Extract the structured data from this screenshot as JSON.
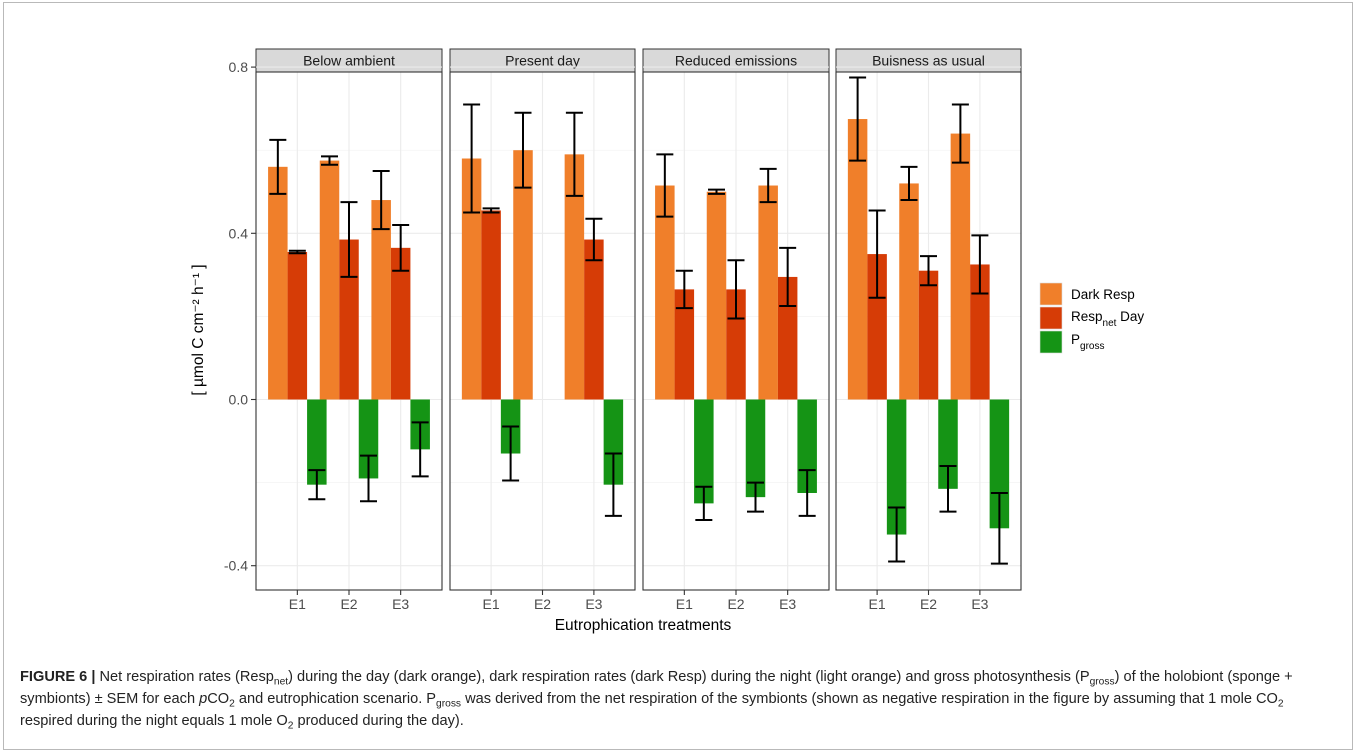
{
  "chart_data": {
    "type": "bar",
    "facets": [
      "Below ambient",
      "Present day",
      "Reduced emissions",
      "Buisness as usual"
    ],
    "categories": [
      "E1",
      "E2",
      "E3"
    ],
    "xlabel": "Eutrophication treatments",
    "ylabel": "[ µmol C cm⁻² h⁻¹ ]",
    "ylim": [
      -0.45,
      0.85
    ],
    "yticks": [
      -0.4,
      0.0,
      0.4,
      0.8
    ],
    "ytick_labels": [
      "-0.4",
      "0.0",
      "0.4",
      "0.8"
    ],
    "grid": true,
    "legend_position": "right",
    "colors": {
      "dark_resp": "#f07f2a",
      "resp_net_day": "#d63c06",
      "p_gross": "#159415"
    },
    "series": [
      {
        "name": "Dark Resp",
        "key": "dark_resp",
        "values": [
          [
            0.56,
            0.575,
            0.48
          ],
          [
            0.58,
            0.6,
            0.59
          ],
          [
            0.515,
            0.5,
            0.515
          ],
          [
            0.675,
            0.52,
            0.64
          ]
        ],
        "errors": [
          [
            0.065,
            0.01,
            0.07
          ],
          [
            0.13,
            0.09,
            0.1
          ],
          [
            0.075,
            0.005,
            0.04
          ],
          [
            0.1,
            0.04,
            0.07
          ]
        ]
      },
      {
        "name": "Resp_net Day",
        "key": "resp_net_day",
        "values": [
          [
            0.355,
            0.385,
            0.365
          ],
          [
            0.455,
            null,
            0.385
          ],
          [
            0.265,
            0.265,
            0.295
          ],
          [
            0.35,
            0.31,
            0.325
          ]
        ],
        "errors": [
          [
            0.003,
            0.09,
            0.055
          ],
          [
            0.005,
            null,
            0.05
          ],
          [
            0.045,
            0.07,
            0.07
          ],
          [
            0.105,
            0.035,
            0.07
          ]
        ]
      },
      {
        "name": "P_gross",
        "key": "p_gross",
        "values": [
          [
            -0.205,
            -0.19,
            -0.12
          ],
          [
            -0.13,
            null,
            -0.205
          ],
          [
            -0.25,
            -0.235,
            -0.225
          ],
          [
            -0.325,
            -0.215,
            -0.31
          ]
        ],
        "errors": [
          [
            0.035,
            0.055,
            0.065
          ],
          [
            0.065,
            null,
            0.075
          ],
          [
            0.04,
            0.035,
            0.055
          ],
          [
            0.065,
            0.055,
            0.085
          ]
        ]
      }
    ]
  },
  "legend": {
    "dark_resp": {
      "label": "Dark Resp"
    },
    "resp_net_day": {
      "main": "Resp",
      "sub": "net",
      "rest": " Day"
    },
    "p_gross": {
      "main": "P",
      "sub": "gross"
    }
  },
  "caption": {
    "figure_label": "FIGURE 6 |",
    "s1": " Net respiration rates (Resp",
    "s1_sub": "net",
    "s2": ") during the day (dark orange), dark respiration rates (dark Resp) during the night (light orange) and gross photosynthesis (P",
    "s2_sub": "gross",
    "s3": ") of the holobiont (sponge + symbionts) ± SEM for each ",
    "s3_italic": "p",
    "s4": "CO",
    "s4_sub": "2",
    "s5": " and eutrophication scenario. P",
    "s5_sub": "gross",
    "s6": " was derived from the net respiration of the symbionts (shown as negative respiration in the figure by assuming that 1 mole CO",
    "s6_sub": "2",
    "s7": " respired during the night equals 1 mole O",
    "s7_sub": "2",
    "s8": " produced during the day)."
  }
}
